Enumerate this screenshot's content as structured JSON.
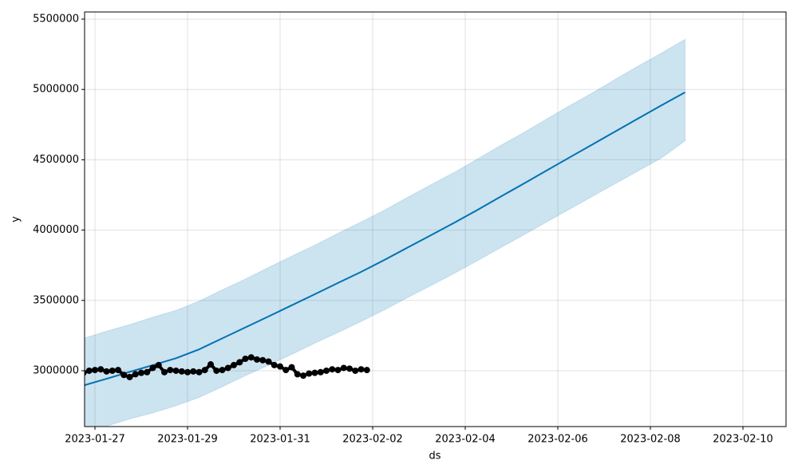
{
  "chart_data": {
    "type": "line",
    "xlabel": "ds",
    "ylabel": "y",
    "xlim": [
      "2023-01-26T18:37",
      "2023-02-10T22:20"
    ],
    "xticks": [
      "2023-01-27",
      "2023-01-29",
      "2023-01-31",
      "2023-02-02",
      "2023-02-04",
      "2023-02-06",
      "2023-02-08",
      "2023-02-10"
    ],
    "ylim": [
      2603000,
      5551000
    ],
    "yticks": [
      3000000,
      3500000,
      4000000,
      4500000,
      5000000,
      5500000
    ],
    "grid": true,
    "series": [
      {
        "color": "#0072b2",
        "band_color": "#0072b2",
        "x": [
          "2023-01-26T18:00",
          "2023-01-27T06:00",
          "2023-01-27T18:00",
          "2023-01-28T06:00",
          "2023-01-28T18:00",
          "2023-01-29T06:00",
          "2023-01-29T18:00",
          "2023-01-30T06:00",
          "2023-01-30T18:00",
          "2023-01-31T06:00",
          "2023-01-31T18:00",
          "2023-02-01T06:00",
          "2023-02-01T18:00",
          "2023-02-02T06:00",
          "2023-02-02T18:00",
          "2023-02-03T06:00",
          "2023-02-03T18:00",
          "2023-02-04T06:00",
          "2023-02-04T18:00",
          "2023-02-05T06:00",
          "2023-02-05T18:00",
          "2023-02-06T06:00",
          "2023-02-06T18:00",
          "2023-02-07T06:00",
          "2023-02-07T18:00",
          "2023-02-08T06:00",
          "2023-02-08T18:00"
        ],
        "values": [
          2895000,
          2943000,
          2992000,
          3040000,
          3089000,
          3152000,
          3230000,
          3308000,
          3386000,
          3465000,
          3544000,
          3624000,
          3703000,
          3787000,
          3875000,
          3962000,
          4050000,
          4141000,
          4235000,
          4328000,
          4422000,
          4516000,
          4609000,
          4703000,
          4796000,
          4889000,
          4980000
        ],
        "upper": [
          3230000,
          3281000,
          3328000,
          3381000,
          3429000,
          3495000,
          3575000,
          3652000,
          3734000,
          3815000,
          3893000,
          3977000,
          4058000,
          4141000,
          4232000,
          4321000,
          4408000,
          4503000,
          4599000,
          4691000,
          4788000,
          4884000,
          4976000,
          5074000,
          5169000,
          5261000,
          5356000
        ],
        "lower": [
          2562000,
          2606000,
          2657000,
          2700000,
          2751000,
          2810000,
          2886000,
          2965000,
          3039000,
          3116000,
          3196000,
          3272000,
          3350000,
          3432000,
          3519000,
          3604000,
          3690000,
          3780000,
          3872000,
          3963000,
          4056000,
          4148000,
          4240000,
          4332000,
          4423000,
          4515000,
          4635000
        ]
      },
      {
        "color": "#000000",
        "marker": "dot",
        "x": [
          "2023-01-26T18:00",
          "2023-01-26T21:00",
          "2023-01-27T00:00",
          "2023-01-27T03:00",
          "2023-01-27T06:00",
          "2023-01-27T09:00",
          "2023-01-27T12:00",
          "2023-01-27T15:00",
          "2023-01-27T18:00",
          "2023-01-27T21:00",
          "2023-01-28T00:00",
          "2023-01-28T03:00",
          "2023-01-28T06:00",
          "2023-01-28T09:00",
          "2023-01-28T12:00",
          "2023-01-28T15:00",
          "2023-01-28T18:00",
          "2023-01-28T21:00",
          "2023-01-29T00:00",
          "2023-01-29T03:00",
          "2023-01-29T06:00",
          "2023-01-29T09:00",
          "2023-01-29T12:00",
          "2023-01-29T15:00",
          "2023-01-29T18:00",
          "2023-01-29T21:00",
          "2023-01-30T00:00",
          "2023-01-30T03:00",
          "2023-01-30T06:00",
          "2023-01-30T09:00",
          "2023-01-30T12:00",
          "2023-01-30T15:00",
          "2023-01-30T18:00",
          "2023-01-30T21:00",
          "2023-01-31T00:00",
          "2023-01-31T03:00",
          "2023-01-31T06:00",
          "2023-01-31T09:00",
          "2023-01-31T12:00",
          "2023-01-31T15:00",
          "2023-01-31T18:00",
          "2023-01-31T21:00",
          "2023-02-01T00:00",
          "2023-02-01T03:00",
          "2023-02-01T06:00",
          "2023-02-01T09:00",
          "2023-02-01T12:00",
          "2023-02-01T15:00",
          "2023-02-01T18:00",
          "2023-02-01T21:00"
        ],
        "values": [
          2985000,
          3000000,
          3005000,
          3010000,
          2995000,
          3000000,
          3005000,
          2970000,
          2955000,
          2975000,
          2985000,
          2990000,
          3020000,
          3040000,
          2990000,
          3005000,
          3000000,
          2995000,
          2990000,
          2995000,
          2990000,
          3005000,
          3045000,
          3000000,
          3005000,
          3020000,
          3040000,
          3060000,
          3085000,
          3095000,
          3080000,
          3075000,
          3065000,
          3040000,
          3030000,
          3005000,
          3025000,
          2975000,
          2965000,
          2980000,
          2985000,
          2990000,
          3000000,
          3010000,
          3005000,
          3020000,
          3015000,
          3000000,
          3010000,
          3005000
        ]
      }
    ]
  }
}
